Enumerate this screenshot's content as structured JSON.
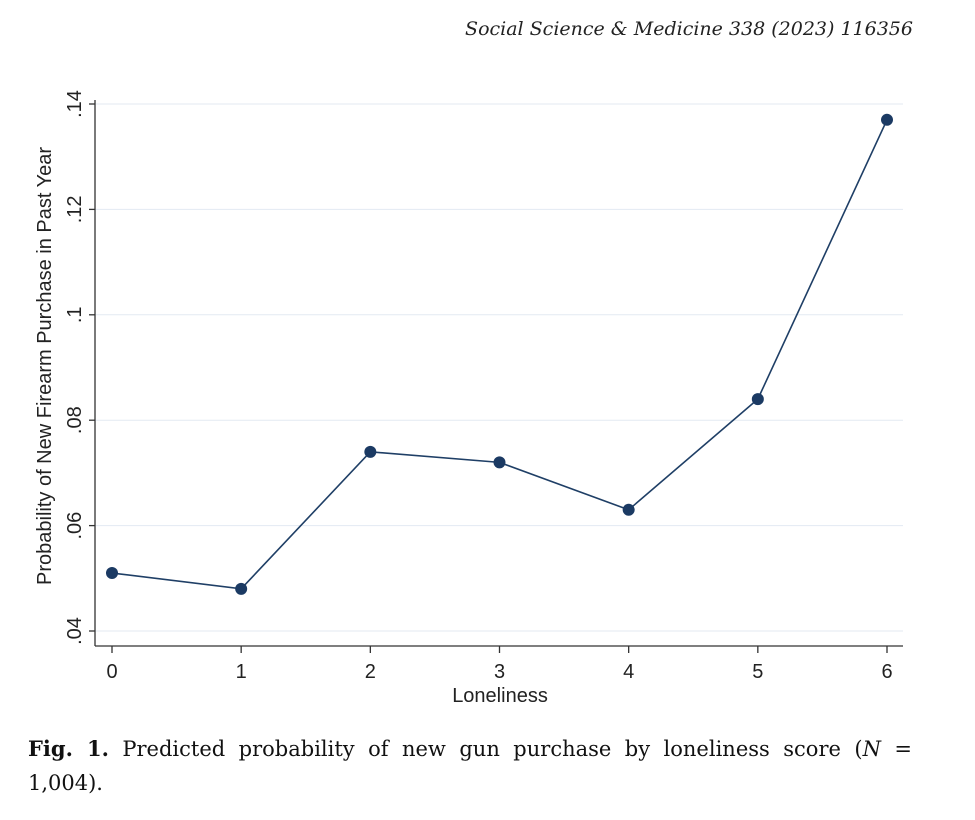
{
  "header": {
    "journal_citation": "Social Science & Medicine 338 (2023) 116356"
  },
  "chart_data": {
    "type": "line",
    "title": "",
    "xlabel": "Loneliness",
    "ylabel": "Probability of New Firearm Purchase in Past Year",
    "x": [
      0,
      1,
      2,
      3,
      4,
      5,
      6
    ],
    "x_tick_labels": [
      "0",
      "1",
      "2",
      "3",
      "4",
      "5",
      "6"
    ],
    "y_ticks": [
      0.04,
      0.06,
      0.08,
      0.1,
      0.12,
      0.14
    ],
    "y_tick_labels": [
      ".04",
      ".06",
      ".08",
      ".1",
      ".12",
      ".14"
    ],
    "series": [
      {
        "name": "Predicted probability",
        "values": [
          0.051,
          0.048,
          0.074,
          0.072,
          0.063,
          0.084,
          0.137
        ]
      }
    ],
    "xlim": [
      0,
      6
    ],
    "ylim": [
      0.04,
      0.14
    ],
    "grid": true,
    "colors": {
      "line": "#1f3f66",
      "marker": "#1b3a63",
      "grid": "#e3eaf2",
      "axis": "#333333"
    }
  },
  "caption": {
    "label": "Fig. 1.",
    "text": "Predicted probability of new gun purchase by loneliness score (",
    "n_symbol": "N",
    "n_value": " = 1,004)."
  }
}
